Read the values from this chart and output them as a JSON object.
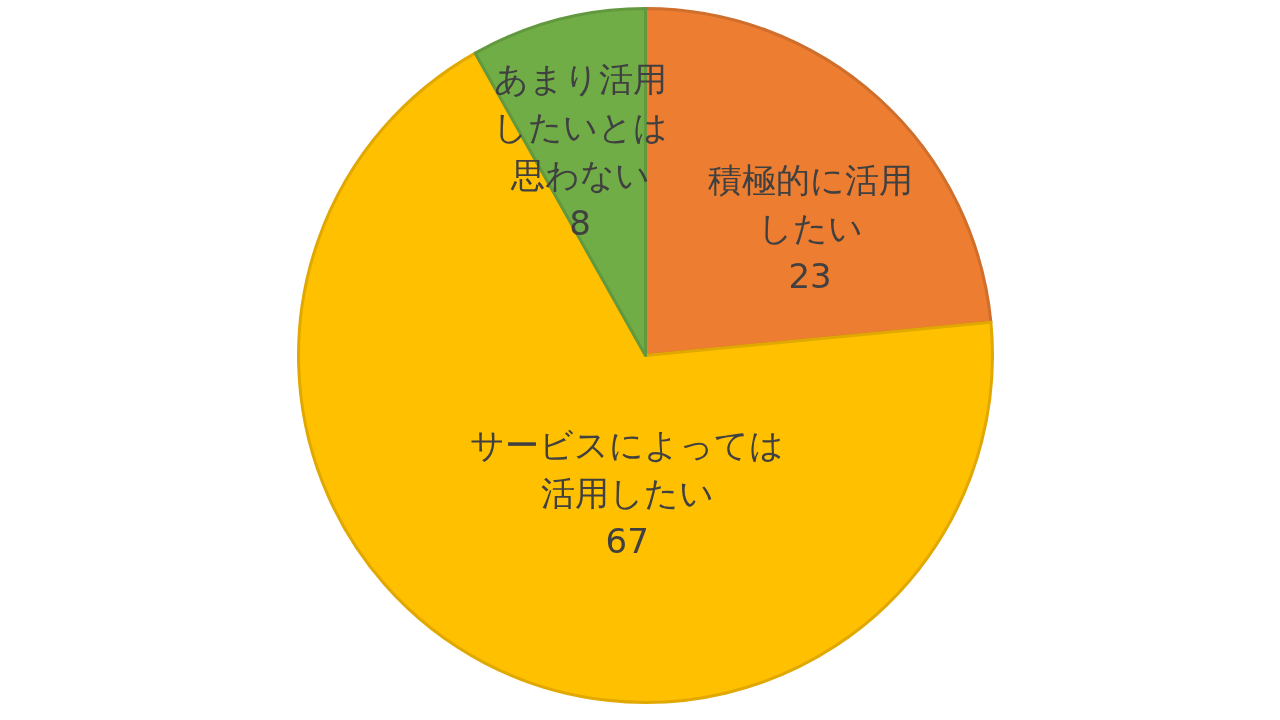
{
  "chart_data": {
    "type": "pie",
    "categories": [
      "積極的に活用したい",
      "サービスによっては活用したい",
      "あまり活用したいとは思わない"
    ],
    "values": [
      23,
      67,
      8
    ],
    "colors": [
      "#ed7d31",
      "#ffc000",
      "#70ad47"
    ],
    "data_labels": true
  }
}
